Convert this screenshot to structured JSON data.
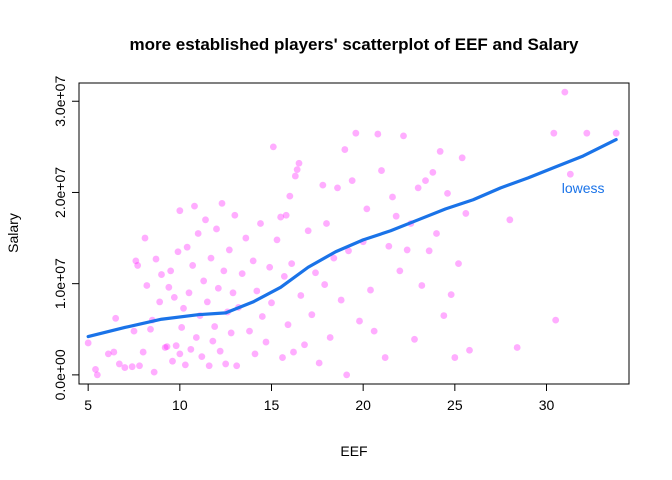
{
  "chart_data": {
    "type": "scatter",
    "title": "more established players' scatterplot of EEF and Salary",
    "xlabel": "EEF",
    "ylabel": "Salary",
    "xlim": [
      4.5,
      34.5
    ],
    "ylim": [
      -1000000,
      32000000
    ],
    "x_ticks": [
      5,
      10,
      15,
      20,
      25,
      30
    ],
    "x_tick_labels": [
      "5",
      "10",
      "15",
      "20",
      "25",
      "30"
    ],
    "y_ticks": [
      0,
      10000000,
      20000000,
      30000000
    ],
    "y_tick_labels": [
      "0.0e+00",
      "1.0e+07",
      "2.0e+07",
      "3.0e+07"
    ],
    "point_color": "#ff00ff",
    "line_color": "#1a73e8",
    "annotation": {
      "text": "lowess",
      "x": 32,
      "y": 20500000
    },
    "series": [
      {
        "kind": "points",
        "points": [
          [
            5.0,
            3500000
          ],
          [
            5.4,
            600000
          ],
          [
            5.5,
            0
          ],
          [
            6.1,
            2300000
          ],
          [
            6.4,
            2500000
          ],
          [
            6.5,
            6200000
          ],
          [
            6.7,
            1200000
          ],
          [
            7.0,
            800000
          ],
          [
            7.4,
            900000
          ],
          [
            7.5,
            4800000
          ],
          [
            7.6,
            12500000
          ],
          [
            7.7,
            12000000
          ],
          [
            7.8,
            1000000
          ],
          [
            8.0,
            2500000
          ],
          [
            8.1,
            15000000
          ],
          [
            8.2,
            9800000
          ],
          [
            8.4,
            5000000
          ],
          [
            8.5,
            6000000
          ],
          [
            8.6,
            300000
          ],
          [
            8.7,
            12700000
          ],
          [
            8.9,
            8000000
          ],
          [
            9.0,
            11000000
          ],
          [
            9.2,
            3000000
          ],
          [
            9.3,
            3100000
          ],
          [
            9.4,
            9600000
          ],
          [
            9.5,
            11400000
          ],
          [
            9.6,
            1500000
          ],
          [
            9.7,
            8500000
          ],
          [
            9.8,
            3200000
          ],
          [
            9.9,
            13500000
          ],
          [
            10.0,
            18000000
          ],
          [
            10.0,
            2300000
          ],
          [
            10.1,
            5200000
          ],
          [
            10.2,
            7300000
          ],
          [
            10.3,
            1100000
          ],
          [
            10.4,
            14000000
          ],
          [
            10.5,
            9000000
          ],
          [
            10.6,
            2800000
          ],
          [
            10.7,
            12000000
          ],
          [
            10.8,
            18500000
          ],
          [
            10.9,
            4100000
          ],
          [
            11.0,
            15500000
          ],
          [
            11.1,
            6500000
          ],
          [
            11.2,
            2000000
          ],
          [
            11.3,
            10300000
          ],
          [
            11.4,
            17000000
          ],
          [
            11.5,
            8000000
          ],
          [
            11.6,
            1000000
          ],
          [
            11.7,
            12800000
          ],
          [
            11.8,
            3700000
          ],
          [
            11.9,
            5300000
          ],
          [
            12.0,
            16000000
          ],
          [
            12.1,
            9500000
          ],
          [
            12.2,
            2600000
          ],
          [
            12.3,
            18800000
          ],
          [
            12.4,
            11400000
          ],
          [
            12.5,
            1200000
          ],
          [
            12.6,
            6900000
          ],
          [
            12.7,
            13700000
          ],
          [
            12.8,
            4600000
          ],
          [
            12.9,
            9000000
          ],
          [
            13.0,
            17500000
          ],
          [
            13.1,
            1000000
          ],
          [
            13.2,
            7400000
          ],
          [
            13.4,
            11100000
          ],
          [
            13.6,
            15000000
          ],
          [
            13.8,
            4800000
          ],
          [
            14.0,
            12500000
          ],
          [
            14.1,
            2300000
          ],
          [
            14.2,
            9200000
          ],
          [
            14.4,
            16600000
          ],
          [
            14.5,
            6400000
          ],
          [
            14.7,
            3600000
          ],
          [
            14.9,
            11800000
          ],
          [
            15.0,
            7900000
          ],
          [
            15.1,
            25000000
          ],
          [
            15.3,
            14800000
          ],
          [
            15.5,
            17300000
          ],
          [
            15.6,
            1900000
          ],
          [
            15.7,
            10800000
          ],
          [
            15.8,
            17500000
          ],
          [
            15.9,
            5500000
          ],
          [
            16.0,
            19600000
          ],
          [
            16.1,
            12200000
          ],
          [
            16.2,
            2500000
          ],
          [
            16.3,
            21800000
          ],
          [
            16.4,
            22500000
          ],
          [
            16.5,
            23200000
          ],
          [
            16.6,
            8700000
          ],
          [
            16.8,
            3300000
          ],
          [
            17.0,
            15800000
          ],
          [
            17.2,
            6600000
          ],
          [
            17.4,
            11200000
          ],
          [
            17.6,
            1300000
          ],
          [
            17.8,
            20800000
          ],
          [
            17.9,
            9900000
          ],
          [
            18.0,
            16600000
          ],
          [
            18.2,
            4100000
          ],
          [
            18.4,
            12800000
          ],
          [
            18.6,
            20500000
          ],
          [
            18.8,
            8200000
          ],
          [
            19.0,
            24700000
          ],
          [
            19.1,
            0
          ],
          [
            19.2,
            13600000
          ],
          [
            19.4,
            21300000
          ],
          [
            19.6,
            26500000
          ],
          [
            19.8,
            5900000
          ],
          [
            20.0,
            14600000
          ],
          [
            20.2,
            18200000
          ],
          [
            20.4,
            9300000
          ],
          [
            20.6,
            4800000
          ],
          [
            20.8,
            26400000
          ],
          [
            21.0,
            22400000
          ],
          [
            21.2,
            1900000
          ],
          [
            21.4,
            14100000
          ],
          [
            21.6,
            19500000
          ],
          [
            21.8,
            17400000
          ],
          [
            22.0,
            11400000
          ],
          [
            22.2,
            26200000
          ],
          [
            22.4,
            13700000
          ],
          [
            22.6,
            16600000
          ],
          [
            22.8,
            3900000
          ],
          [
            23.0,
            20500000
          ],
          [
            23.2,
            9800000
          ],
          [
            23.4,
            21300000
          ],
          [
            23.6,
            13600000
          ],
          [
            23.8,
            22200000
          ],
          [
            24.0,
            15500000
          ],
          [
            24.2,
            24500000
          ],
          [
            24.4,
            6500000
          ],
          [
            24.6,
            19900000
          ],
          [
            24.8,
            8800000
          ],
          [
            25.0,
            1900000
          ],
          [
            25.2,
            12200000
          ],
          [
            25.4,
            23800000
          ],
          [
            25.6,
            17700000
          ],
          [
            25.8,
            2700000
          ],
          [
            28.0,
            17000000
          ],
          [
            28.4,
            3000000
          ],
          [
            30.4,
            26500000
          ],
          [
            30.5,
            6000000
          ],
          [
            31.0,
            31000000
          ],
          [
            31.3,
            22000000
          ],
          [
            32.2,
            26500000
          ],
          [
            33.8,
            26500000
          ]
        ]
      },
      {
        "kind": "line",
        "name": "lowess",
        "points": [
          [
            5.0,
            4200000
          ],
          [
            7.0,
            5200000
          ],
          [
            9.0,
            6100000
          ],
          [
            11.0,
            6600000
          ],
          [
            12.5,
            6800000
          ],
          [
            14.0,
            8000000
          ],
          [
            15.5,
            9600000
          ],
          [
            17.0,
            11800000
          ],
          [
            18.5,
            13500000
          ],
          [
            20.0,
            14800000
          ],
          [
            21.5,
            15800000
          ],
          [
            23.0,
            17000000
          ],
          [
            24.5,
            18200000
          ],
          [
            26.0,
            19200000
          ],
          [
            27.5,
            20500000
          ],
          [
            29.0,
            21600000
          ],
          [
            30.5,
            22800000
          ],
          [
            32.0,
            24000000
          ],
          [
            33.8,
            25800000
          ]
        ]
      }
    ]
  }
}
